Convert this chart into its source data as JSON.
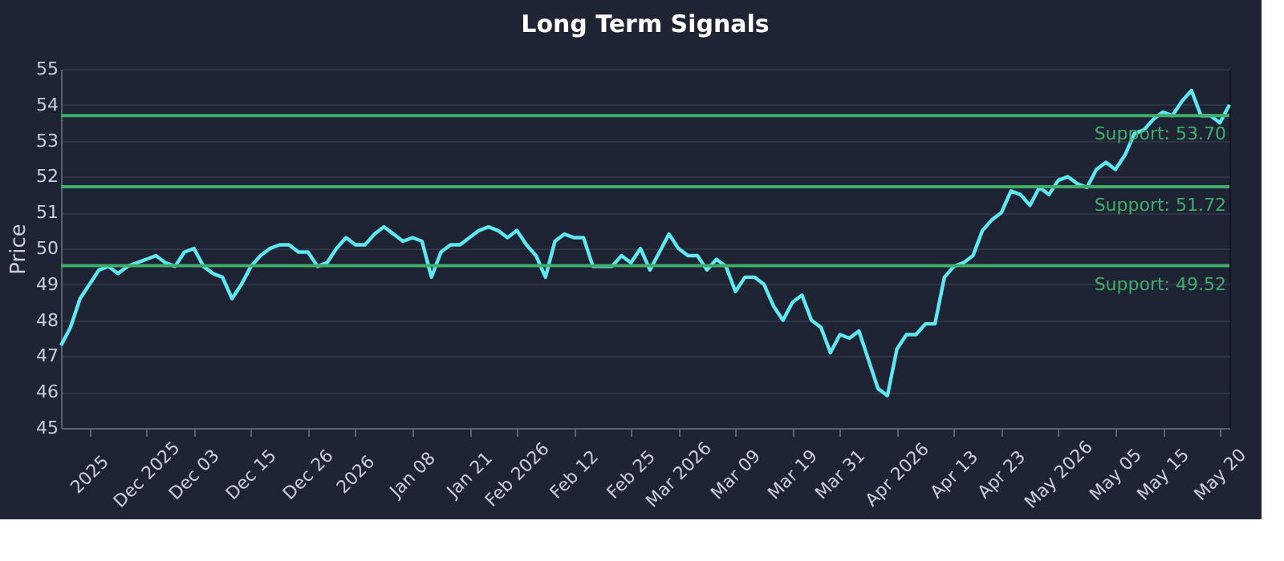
{
  "chart_data": {
    "type": "line",
    "title": "Long Term Signals",
    "ylabel": "Price",
    "categories": [
      null,
      null,
      null,
      "2025",
      null,
      null,
      null,
      null,
      null,
      "Dec 2025",
      null,
      null,
      null,
      null,
      "Dec 03",
      null,
      null,
      null,
      null,
      null,
      "Dec 15",
      null,
      null,
      null,
      null,
      null,
      "Dec 26",
      null,
      null,
      null,
      null,
      "2026",
      null,
      null,
      null,
      null,
      null,
      "Jan 08",
      null,
      null,
      null,
      null,
      null,
      "Jan 21",
      null,
      null,
      null,
      null,
      "Feb 2026",
      null,
      null,
      null,
      null,
      null,
      "Feb 12",
      null,
      null,
      null,
      null,
      null,
      "Feb 25",
      null,
      null,
      null,
      null,
      "Mar 2026",
      null,
      null,
      null,
      null,
      null,
      "Mar 09",
      null,
      null,
      null,
      null,
      null,
      "Mar 19",
      null,
      null,
      null,
      null,
      "Mar 31",
      null,
      null,
      null,
      null,
      null,
      "Apr 2026",
      null,
      null,
      null,
      null,
      null,
      "Apr 13",
      null,
      null,
      null,
      null,
      "Apr 23",
      null,
      null,
      null,
      null,
      null,
      "May 2026",
      null,
      null,
      null,
      null,
      null,
      "May 05",
      null,
      null,
      null,
      null,
      "May 15",
      null,
      null,
      null,
      null,
      null,
      "May 20",
      null
    ],
    "series": [
      {
        "color": "#5ee9f2",
        "values": [
          47.3,
          47.8,
          48.6,
          49.0,
          49.4,
          49.5,
          49.3,
          49.5,
          49.6,
          49.7,
          49.8,
          49.6,
          49.5,
          49.9,
          50.0,
          49.5,
          49.3,
          49.2,
          48.6,
          49.0,
          49.5,
          49.8,
          50.0,
          50.1,
          50.1,
          49.9,
          49.9,
          49.5,
          49.6,
          50.0,
          50.3,
          50.1,
          50.1,
          50.4,
          50.6,
          50.4,
          50.2,
          50.3,
          50.2,
          49.2,
          49.9,
          50.1,
          50.1,
          50.3,
          50.5,
          50.6,
          50.5,
          50.3,
          50.5,
          50.1,
          49.8,
          49.2,
          50.2,
          50.4,
          50.3,
          50.3,
          49.5,
          49.5,
          49.5,
          49.8,
          49.6,
          50.0,
          49.4,
          49.9,
          50.4,
          50.0,
          49.8,
          49.8,
          49.4,
          49.7,
          49.5,
          48.8,
          49.2,
          49.2,
          49.0,
          48.4,
          48.0,
          48.5,
          48.7,
          48.0,
          47.8,
          47.1,
          47.6,
          47.5,
          47.7,
          46.9,
          46.1,
          45.9,
          47.2,
          47.6,
          47.6,
          47.9,
          47.9,
          49.2,
          49.5,
          49.6,
          49.8,
          50.5,
          50.8,
          51.0,
          51.6,
          51.5,
          51.2,
          51.7,
          51.5,
          51.9,
          52.0,
          51.8,
          51.7,
          52.2,
          52.4,
          52.2,
          52.6,
          53.2,
          53.3,
          53.6,
          53.8,
          53.7,
          54.1,
          54.4,
          53.7,
          53.7,
          53.5,
          54.0
        ]
      }
    ],
    "ylim": [
      45,
      55
    ],
    "yticks": [
      45,
      46,
      47,
      48,
      49,
      50,
      51,
      52,
      53,
      54,
      55
    ],
    "grid": "y",
    "line_style": "solid",
    "marker": "none",
    "ref_lines": [
      {
        "axis": "y",
        "value": 53.7,
        "label": "Support: 53.70",
        "color": "#3fae6a"
      },
      {
        "axis": "y",
        "value": 51.72,
        "label": "Support: 51.72",
        "color": "#3fae6a"
      },
      {
        "axis": "y",
        "value": 49.52,
        "label": "Support: 49.52",
        "color": "#3fae6a"
      }
    ]
  }
}
